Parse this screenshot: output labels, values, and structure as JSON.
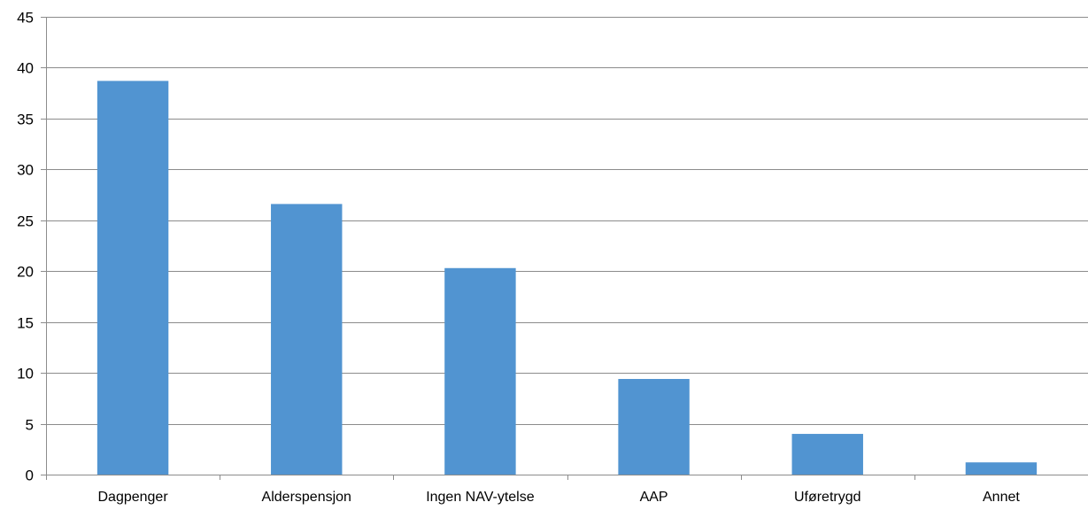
{
  "chart_data": {
    "type": "bar",
    "title": "",
    "xlabel": "",
    "ylabel": "",
    "categories": [
      "Dagpenger",
      "Alderspensjon",
      "Ingen NAV-ytelse",
      "AAP",
      "Uføretrygd",
      "Annet"
    ],
    "values": [
      38.7,
      26.6,
      20.3,
      9.4,
      4.0,
      1.2
    ],
    "ylim": [
      0,
      45
    ],
    "yticks": [
      0,
      5,
      10,
      15,
      20,
      25,
      30,
      35,
      40,
      45
    ],
    "grid": true,
    "legend": "none",
    "colors": {
      "bar": "#5194D1",
      "grid": "#8C8C8C",
      "axis": "#8C8C8C"
    }
  }
}
